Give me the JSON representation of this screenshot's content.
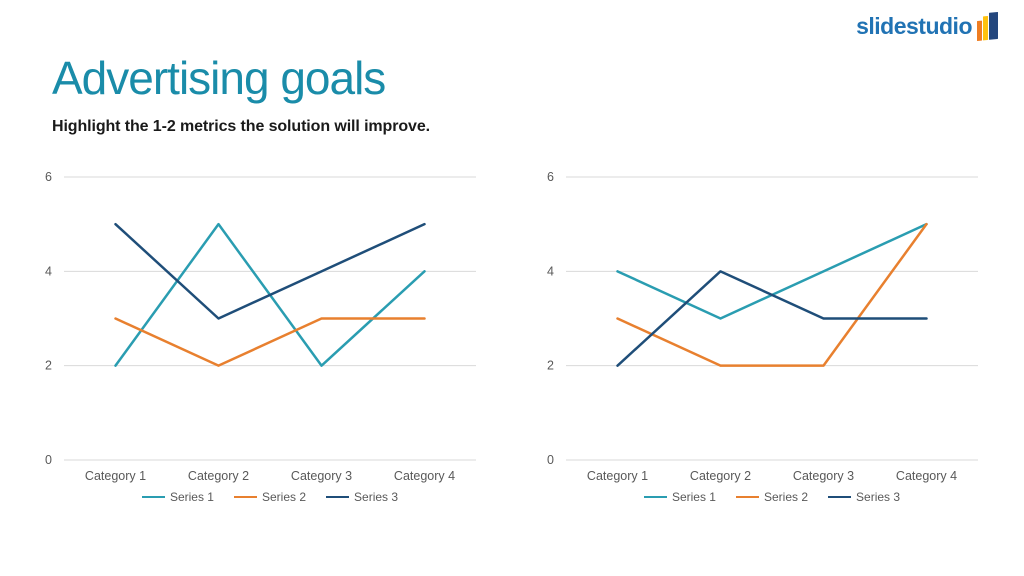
{
  "logo": {
    "text": "slidestudio",
    "icon": "striped-flag-icon"
  },
  "header": {
    "title": "Advertising goals",
    "subtitle": "Highlight the 1-2 metrics the solution will improve."
  },
  "theme": {
    "title_color": "#1A8CA9",
    "subtitle_color": "#1A1A1A",
    "logo_blue": "#2173B4",
    "logo_orange": "#EF7D22",
    "logo_gold": "#FFC20E",
    "logo_navy": "#24477D",
    "axis_text": "#595959",
    "gridline": "#D9D9D9",
    "background": "#FFFFFF"
  },
  "chart_data": [
    {
      "type": "line",
      "title": "",
      "xlabel": "",
      "ylabel": "",
      "categories": [
        "Category 1",
        "Category 2",
        "Category 3",
        "Category 4"
      ],
      "series": [
        {
          "name": "Series 1",
          "color": "#2A9DB1",
          "values": [
            2,
            5,
            2,
            4
          ]
        },
        {
          "name": "Series 2",
          "color": "#E8802F",
          "values": [
            3,
            2,
            3,
            3
          ]
        },
        {
          "name": "Series 3",
          "color": "#1F4E79",
          "values": [
            5,
            3,
            4,
            5
          ]
        }
      ],
      "ylim": [
        0,
        6
      ],
      "yticks": [
        0,
        2,
        4,
        6
      ],
      "grid": true,
      "legend_position": "bottom"
    },
    {
      "type": "line",
      "title": "",
      "xlabel": "",
      "ylabel": "",
      "categories": [
        "Category 1",
        "Category 2",
        "Category 3",
        "Category 4"
      ],
      "series": [
        {
          "name": "Series 1",
          "color": "#2A9DB1",
          "values": [
            4,
            3,
            4,
            5
          ]
        },
        {
          "name": "Series 2",
          "color": "#E8802F",
          "values": [
            3,
            2,
            2,
            5
          ]
        },
        {
          "name": "Series 3",
          "color": "#1F4E79",
          "values": [
            2,
            4,
            3,
            3
          ]
        }
      ],
      "ylim": [
        0,
        6
      ],
      "yticks": [
        0,
        2,
        4,
        6
      ],
      "grid": true,
      "legend_position": "bottom"
    }
  ]
}
